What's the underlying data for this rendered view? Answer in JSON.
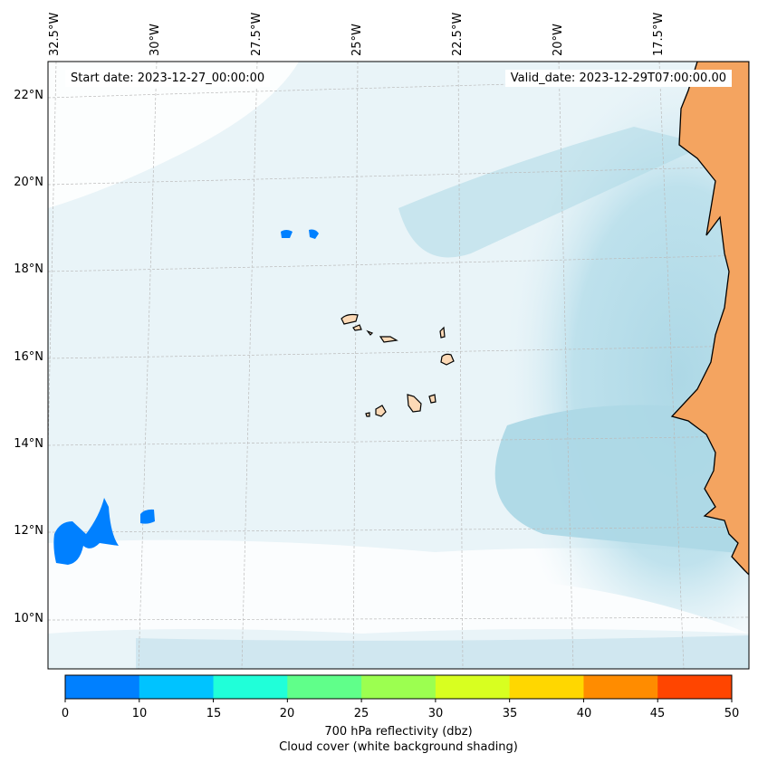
{
  "map": {
    "lon_labels": [
      "32.5°W",
      "30°W",
      "27.5°W",
      "25°W",
      "22.5°W",
      "20°W",
      "17.5°W"
    ],
    "lat_labels": [
      "22°N",
      "20°N",
      "18°N",
      "16°N",
      "14°N",
      "12°N",
      "10°N"
    ],
    "start_date": "Start date: 2023-12-27_00:00:00",
    "valid_date": "Valid_date: 2023-12-29T07:00:00.00",
    "colors": {
      "land_continent": "#f4a460",
      "land_islands": "#fcd9b6",
      "cloud_dense": "#add8e6",
      "cloud_light": "#e6f3f8",
      "reflectivity_0_10": "#0080ff"
    }
  },
  "colorbar": {
    "ticks": [
      "0",
      "10",
      "15",
      "20",
      "25",
      "30",
      "35",
      "40",
      "45",
      "50"
    ],
    "colors": [
      "#0080ff",
      "#00c3ff",
      "#20ffd9",
      "#60ff8a",
      "#9cff50",
      "#d8ff20",
      "#ffd700",
      "#ff8c00",
      "#ff4500"
    ],
    "label_line1": "700 hPa reflectivity (dbz)",
    "label_line2": "Cloud cover (white background shading)"
  }
}
